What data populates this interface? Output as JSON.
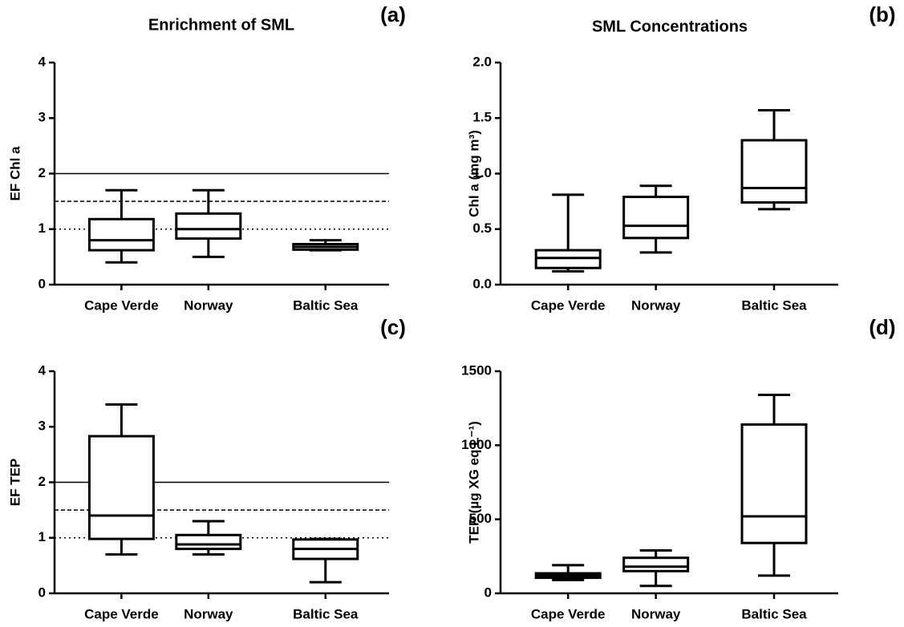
{
  "chart_data": [
    {
      "type": "box",
      "title": "Enrichment of SML",
      "panel_label": "(a)",
      "ylabel": "EF Chl a",
      "categories": [
        "Cape Verde",
        "Norway",
        "Baltic Sea"
      ],
      "stats": [
        {
          "min": 0.4,
          "q1": 0.62,
          "median": 0.8,
          "q3": 1.18,
          "max": 1.7
        },
        {
          "min": 0.5,
          "q1": 0.83,
          "median": 1.0,
          "q3": 1.28,
          "max": 1.7
        },
        {
          "min": 0.62,
          "q1": 0.63,
          "median": 0.68,
          "q3": 0.73,
          "max": 0.8
        }
      ],
      "ylim": [
        0,
        4
      ],
      "yticks": [
        0,
        1,
        2,
        3,
        4
      ],
      "hlines": [
        {
          "value": 2,
          "linestyle": "solid"
        },
        {
          "value": 1.5,
          "linestyle": "dashed"
        },
        {
          "value": 1,
          "linestyle": "dotted"
        }
      ],
      "color": "#000000"
    },
    {
      "type": "box",
      "title": "SML Concentrations",
      "panel_label": "(b)",
      "ylabel": "Chl a (mg m³)",
      "categories": [
        "Cape Verde",
        "Norway",
        "Baltic Sea"
      ],
      "stats": [
        {
          "min": 0.12,
          "q1": 0.15,
          "median": 0.24,
          "q3": 0.31,
          "max": 0.81
        },
        {
          "min": 0.29,
          "q1": 0.42,
          "median": 0.53,
          "q3": 0.79,
          "max": 0.89
        },
        {
          "min": 0.68,
          "q1": 0.74,
          "median": 0.87,
          "q3": 1.3,
          "max": 1.57
        }
      ],
      "ylim": [
        0,
        2
      ],
      "yticks": [
        {
          "value": 0,
          "label": "0.0"
        },
        0.5,
        {
          "value": 1,
          "label": "1.0"
        },
        1.5,
        {
          "value": 2,
          "label": "2.0"
        }
      ],
      "color": "#000000"
    },
    {
      "type": "box",
      "panel_label": "(c)",
      "ylabel": "EF TEP",
      "categories": [
        "Cape Verde",
        "Norway",
        "Baltic Sea"
      ],
      "stats": [
        {
          "min": 0.7,
          "q1": 0.98,
          "median": 1.4,
          "q3": 2.83,
          "max": 3.4
        },
        {
          "min": 0.7,
          "q1": 0.8,
          "median": 0.88,
          "q3": 1.05,
          "max": 1.3
        },
        {
          "min": 0.2,
          "q1": 0.62,
          "median": 0.8,
          "q3": 0.97,
          "max": 0.98
        }
      ],
      "ylim": [
        0,
        4
      ],
      "yticks": [
        0,
        1,
        2,
        3,
        4
      ],
      "hlines": [
        {
          "value": 2,
          "linestyle": "solid"
        },
        {
          "value": 1.5,
          "linestyle": "dashed"
        },
        {
          "value": 1,
          "linestyle": "dotted"
        }
      ],
      "color": "#000000"
    },
    {
      "type": "box",
      "panel_label": "(d)",
      "ylabel": "TEP (µg XG eq L⁻¹)",
      "categories": [
        "Cape Verde",
        "Norway",
        "Baltic Sea"
      ],
      "stats": [
        {
          "min": 90,
          "q1": 105,
          "median": 120,
          "q3": 135,
          "max": 190
        },
        {
          "min": 50,
          "q1": 150,
          "median": 180,
          "q3": 240,
          "max": 290
        },
        {
          "min": 120,
          "q1": 340,
          "median": 520,
          "q3": 1140,
          "max": 1340
        }
      ],
      "ylim": [
        0,
        1500
      ],
      "yticks": [
        0,
        500,
        1000,
        1500
      ],
      "color": "#000000"
    }
  ]
}
